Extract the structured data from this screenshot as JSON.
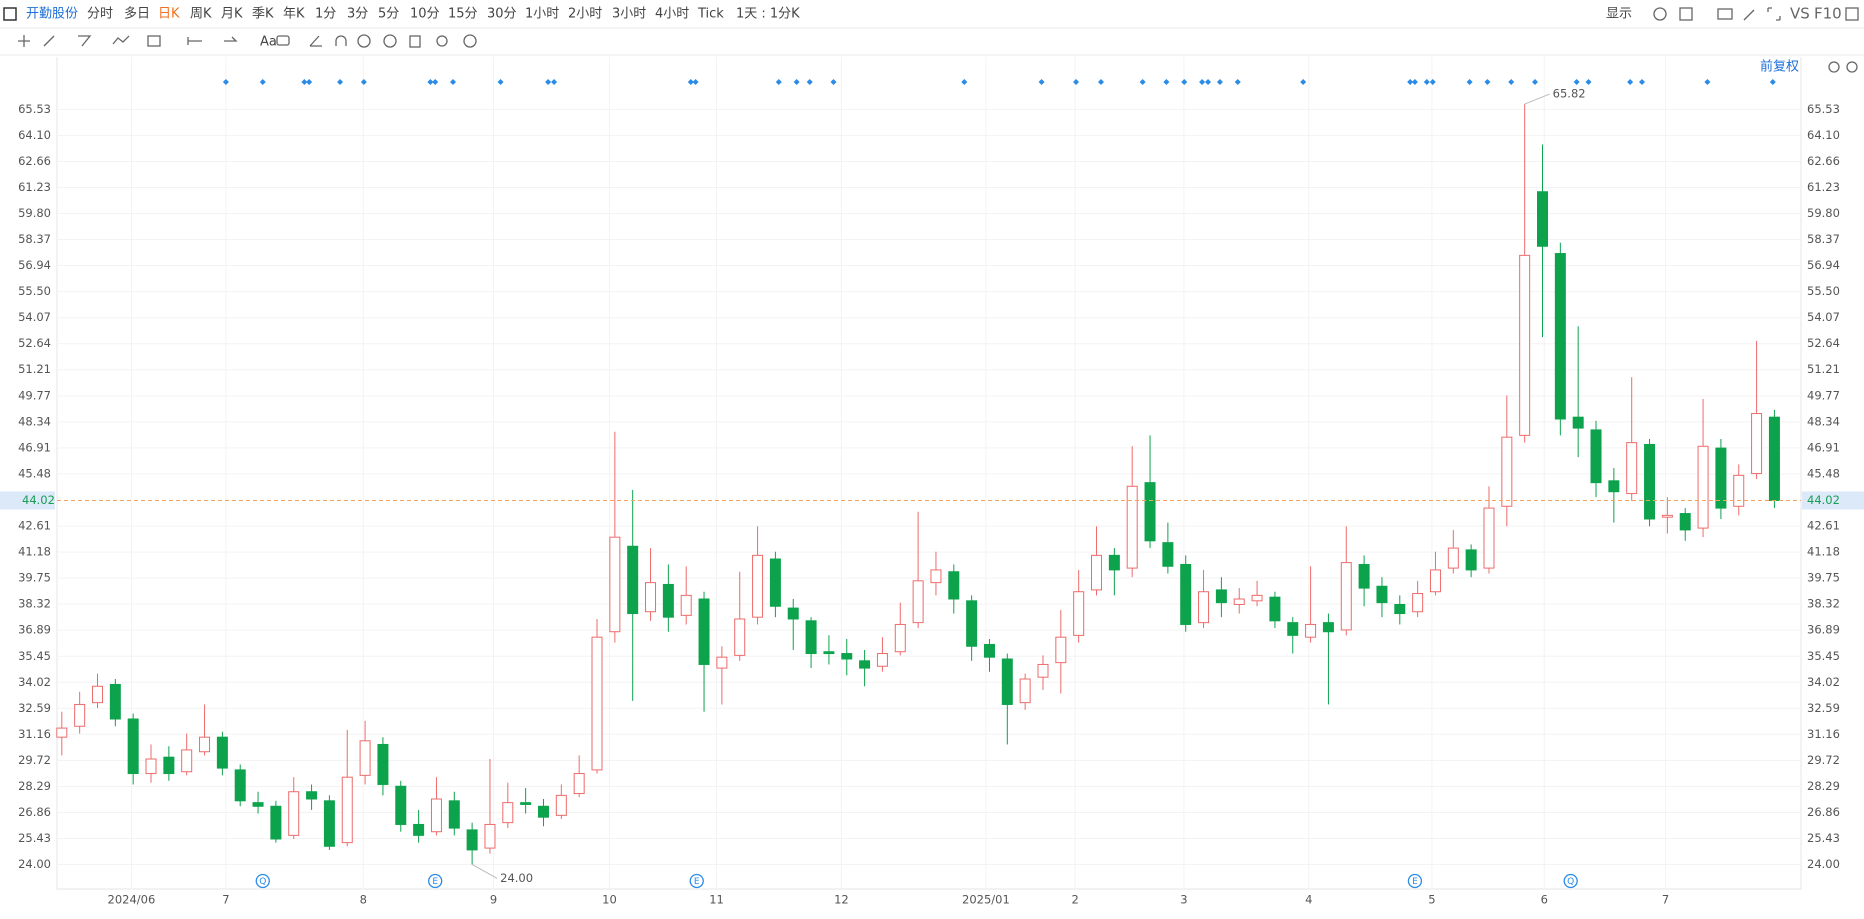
{
  "toolbar": {
    "stock": "开勤股份",
    "periods": [
      "分时",
      "多日",
      "日K",
      "周K",
      "月K",
      "季K",
      "年K",
      "1分",
      "3分",
      "5分",
      "10分",
      "15分",
      "30分",
      "1小时",
      "2小时",
      "3小时",
      "4小时",
      "Tick"
    ],
    "active": "日K",
    "range": "1天 : 1分K",
    "display": "显示",
    "vs": "VS",
    "f10": "F10",
    "font_tool": "Aa"
  },
  "chart_data": {
    "type": "candlestick",
    "adjust": "前复权",
    "open": [
      31.0,
      31.6,
      32.9,
      33.9,
      32.0,
      29.0,
      29.9,
      29.1,
      30.2,
      31.0,
      29.2,
      27.4,
      27.2,
      25.6,
      28.0,
      27.5,
      25.2,
      28.9,
      30.6,
      28.3,
      26.2,
      25.8,
      27.5,
      25.9,
      24.9,
      26.3,
      27.4,
      27.2,
      26.7,
      27.9,
      29.2,
      36.8,
      41.5,
      37.9,
      39.4,
      37.7,
      38.6,
      34.8,
      35.5,
      37.6,
      40.8,
      38.1,
      37.4,
      35.7,
      35.6,
      35.2,
      34.9,
      35.7,
      37.3,
      39.5,
      40.1,
      38.5,
      36.1,
      35.3,
      32.9,
      34.3,
      35.1,
      36.6,
      39.1,
      41.0,
      40.3,
      45.0,
      41.7,
      40.5,
      37.3,
      39.1,
      38.3,
      38.5,
      38.7,
      37.3,
      36.5,
      37.3,
      36.9,
      40.5,
      39.3,
      38.3,
      37.9,
      39.0,
      40.3,
      41.3,
      40.3,
      43.7,
      47.6,
      61.0,
      57.6,
      48.6,
      47.9,
      45.1,
      44.4,
      47.1,
      43.1,
      43.3,
      42.5,
      46.9,
      43.7,
      45.5,
      48.6
    ],
    "high": [
      32.4,
      33.5,
      34.5,
      34.2,
      32.3,
      30.6,
      30.5,
      31.2,
      32.8,
      31.3,
      29.5,
      28.0,
      27.5,
      28.8,
      28.4,
      27.8,
      31.4,
      31.9,
      31.0,
      28.6,
      27.0,
      28.8,
      28.0,
      26.3,
      29.8,
      28.5,
      28.2,
      27.6,
      28.4,
      30.0,
      37.5,
      47.8,
      44.6,
      41.4,
      40.5,
      40.4,
      39.0,
      36.0,
      40.1,
      42.6,
      41.2,
      38.6,
      37.6,
      36.6,
      36.4,
      35.8,
      36.5,
      38.4,
      43.4,
      41.2,
      40.5,
      38.8,
      36.4,
      35.6,
      34.5,
      35.5,
      38.0,
      40.2,
      42.6,
      41.4,
      47.0,
      47.6,
      42.8,
      41.0,
      40.2,
      39.8,
      39.2,
      39.6,
      39.0,
      37.6,
      40.4,
      37.8,
      42.6,
      41.0,
      39.8,
      38.8,
      39.6,
      41.2,
      42.4,
      41.6,
      44.8,
      49.8,
      65.82,
      63.6,
      58.2,
      53.6,
      48.4,
      45.8,
      50.8,
      47.4,
      44.2,
      43.6,
      49.6,
      47.4,
      46.0,
      52.8,
      49.0
    ],
    "low": [
      30.0,
      31.2,
      32.6,
      31.6,
      28.4,
      28.5,
      28.6,
      28.9,
      30.0,
      28.9,
      27.2,
      26.8,
      25.2,
      25.4,
      27.0,
      24.8,
      25.0,
      28.4,
      27.8,
      25.8,
      25.2,
      25.6,
      25.6,
      24.0,
      24.6,
      26.0,
      26.8,
      26.1,
      26.5,
      27.7,
      29.0,
      36.2,
      33.0,
      37.4,
      36.8,
      37.2,
      32.4,
      32.8,
      35.2,
      37.2,
      37.6,
      35.8,
      34.8,
      35.0,
      34.4,
      33.8,
      34.6,
      35.5,
      37.0,
      38.8,
      37.8,
      35.2,
      34.6,
      30.6,
      32.5,
      33.6,
      33.4,
      36.2,
      38.8,
      38.8,
      39.8,
      41.4,
      40.0,
      36.8,
      37.0,
      37.6,
      37.8,
      38.2,
      37.0,
      35.6,
      36.2,
      32.8,
      36.6,
      38.2,
      37.6,
      37.2,
      37.6,
      38.8,
      40.0,
      39.8,
      40.0,
      42.6,
      47.2,
      53.0,
      47.6,
      46.4,
      44.2,
      42.8,
      44.0,
      42.6,
      42.2,
      41.8,
      42.0,
      43.0,
      43.2,
      45.2,
      43.6
    ],
    "close": [
      31.5,
      32.8,
      33.8,
      32.0,
      29.0,
      29.8,
      29.0,
      30.3,
      31.0,
      29.3,
      27.5,
      27.2,
      25.4,
      28.0,
      27.6,
      25.0,
      28.8,
      30.8,
      28.4,
      26.2,
      25.6,
      27.6,
      26.0,
      24.8,
      26.2,
      27.4,
      27.3,
      26.6,
      27.8,
      29.0,
      36.5,
      42.0,
      37.8,
      39.5,
      37.6,
      38.8,
      35.0,
      35.4,
      37.5,
      41.0,
      38.2,
      37.5,
      35.6,
      35.6,
      35.3,
      34.8,
      35.6,
      37.2,
      39.6,
      40.2,
      38.6,
      36.0,
      35.4,
      32.8,
      34.2,
      35.0,
      36.5,
      39.0,
      41.0,
      40.2,
      44.8,
      41.8,
      40.4,
      37.2,
      39.0,
      38.4,
      38.6,
      38.8,
      37.4,
      36.6,
      37.2,
      36.8,
      40.6,
      39.2,
      38.4,
      37.8,
      38.9,
      40.2,
      41.4,
      40.2,
      43.6,
      47.5,
      57.5,
      58.0,
      48.5,
      48.0,
      45.0,
      44.5,
      47.2,
      43.0,
      43.2,
      42.4,
      47.0,
      43.6,
      45.4,
      48.8,
      44.02
    ],
    "ylim": [
      22.65,
      68.41
    ],
    "yticks": [
      {
        "value": 24,
        "label": "24.00"
      },
      25.43,
      26.86,
      28.29,
      29.72,
      31.16,
      32.59,
      34.02,
      35.45,
      36.89,
      38.32,
      39.75,
      41.18,
      42.61,
      45.48,
      46.91,
      48.34,
      49.77,
      51.21,
      52.64,
      54.07,
      {
        "value": 55.5,
        "label": "55.50"
      },
      56.94,
      58.37,
      {
        "value": 59.8,
        "label": "59.80"
      },
      61.23,
      62.66,
      {
        "value": 64.1,
        "label": "64.10"
      },
      65.53
    ],
    "xlim": [
      -0.27,
      97.49
    ],
    "xticks": [
      {
        "value": 3.9,
        "label": "2024/06"
      },
      {
        "value": 9.2,
        "label": "7"
      },
      {
        "value": 16.9,
        "label": "8"
      },
      {
        "value": 24.2,
        "label": "9"
      },
      {
        "value": 30.7,
        "label": "10"
      },
      {
        "value": 36.7,
        "label": "11"
      },
      {
        "value": 43.7,
        "label": "12"
      },
      {
        "value": 51.8,
        "label": "2025/01"
      },
      {
        "value": 56.8,
        "label": "2"
      },
      {
        "value": 62.9,
        "label": "3"
      },
      {
        "value": 69.9,
        "label": "4"
      },
      {
        "value": 76.8,
        "label": "5"
      },
      {
        "value": 83.1,
        "label": "6"
      },
      {
        "value": 89.9,
        "label": "7"
      }
    ],
    "last_price": 44.02,
    "last_price_color": "#f5a25d",
    "up_color": "#ee6b6b",
    "down_color": "#0da34d",
    "annotations": [
      {
        "label": "65.82",
        "index": 82,
        "value": 65.82
      },
      {
        "label": "24.00",
        "index": 23,
        "value": 24
      }
    ],
    "event_markers": [
      "Q",
      "E",
      "E",
      "E",
      "Q"
    ],
    "grid": true
  }
}
